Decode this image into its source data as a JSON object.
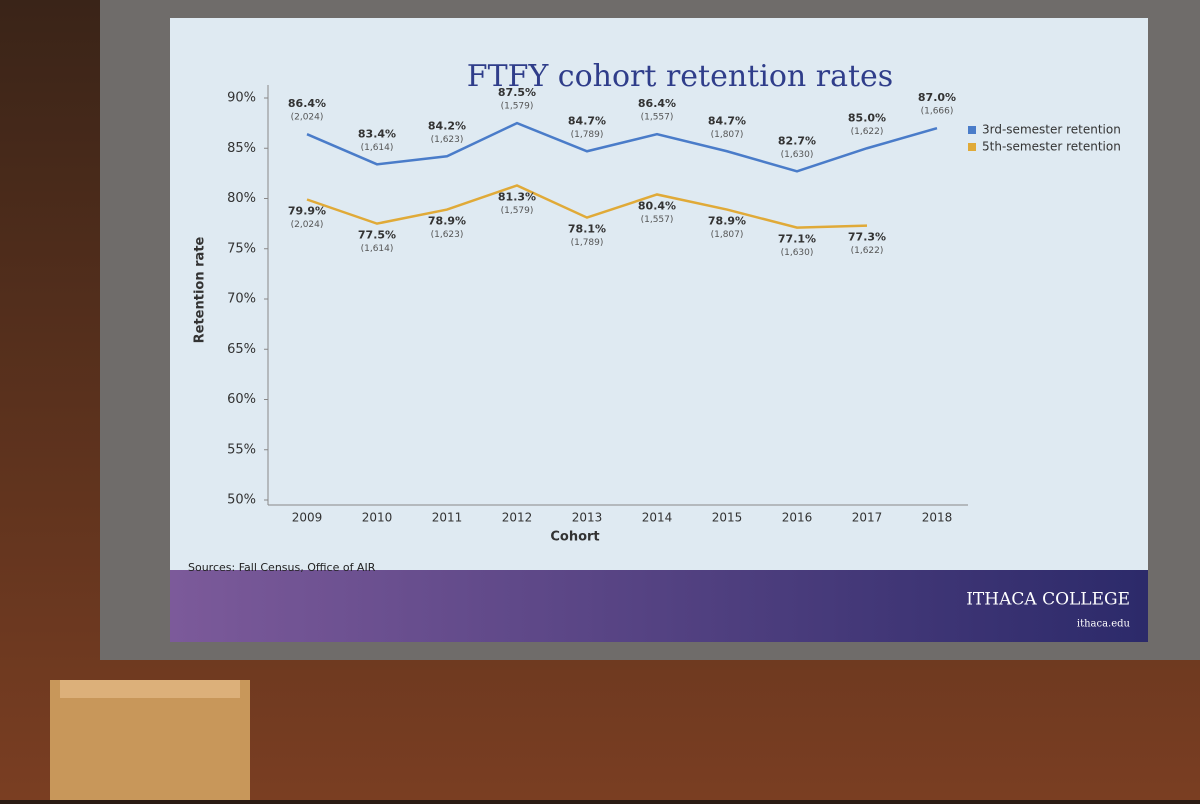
{
  "chart_data": {
    "type": "line",
    "title": "FTFY cohort retention rates",
    "xlabel": "Cohort",
    "ylabel": "Retention rate",
    "categories": [
      "2009",
      "2010",
      "2011",
      "2012",
      "2013",
      "2014",
      "2015",
      "2016",
      "2017",
      "2018"
    ],
    "ylim": [
      50,
      90
    ],
    "yticks": [
      {
        "value": 50,
        "label": "50%"
      },
      {
        "value": 55,
        "label": "55%"
      },
      {
        "value": 60,
        "label": "60%"
      },
      {
        "value": 65,
        "label": "65%"
      },
      {
        "value": 70,
        "label": "70%"
      },
      {
        "value": 75,
        "label": "75%"
      },
      {
        "value": 80,
        "label": "80%"
      },
      {
        "value": 85,
        "label": "85%"
      },
      {
        "value": 90,
        "label": "90%"
      }
    ],
    "legend": "upper right",
    "series": [
      {
        "name": "3rd-semester retention",
        "color": "#4a7cc9",
        "values": [
          86.4,
          83.4,
          84.2,
          87.5,
          84.7,
          86.4,
          84.7,
          82.7,
          85.0,
          87.0
        ],
        "value_labels": [
          "86.4%",
          "83.4%",
          "84.2%",
          "87.5%",
          "84.7%",
          "86.4%",
          "84.7%",
          "82.7%",
          "85.0%",
          "87.0%"
        ],
        "count_labels": [
          "(2,024)",
          "(1,614)",
          "(1,623)",
          "(1,579)",
          "(1,789)",
          "(1,557)",
          "(1,807)",
          "(1,630)",
          "(1,622)",
          "(1,666)"
        ]
      },
      {
        "name": "5th-semester retention",
        "color": "#e0aa38",
        "values": [
          79.9,
          77.5,
          78.9,
          81.3,
          78.1,
          80.4,
          78.9,
          77.1,
          77.3,
          null
        ],
        "value_labels": [
          "79.9%",
          "77.5%",
          "78.9%",
          "81.3%",
          "78.1%",
          "80.4%",
          "78.9%",
          "77.1%",
          "77.3%",
          null
        ],
        "count_labels": [
          "(2,024)",
          "(1,614)",
          "(1,623)",
          "(1,579)",
          "(1,789)",
          "(1,557)",
          "(1,807)",
          "(1,630)",
          "(1,622)",
          null
        ]
      }
    ],
    "source": "Sources: Fall Census, Office of AIR",
    "brand": "ITHACA COLLEGE",
    "url": "ithaca.edu"
  }
}
